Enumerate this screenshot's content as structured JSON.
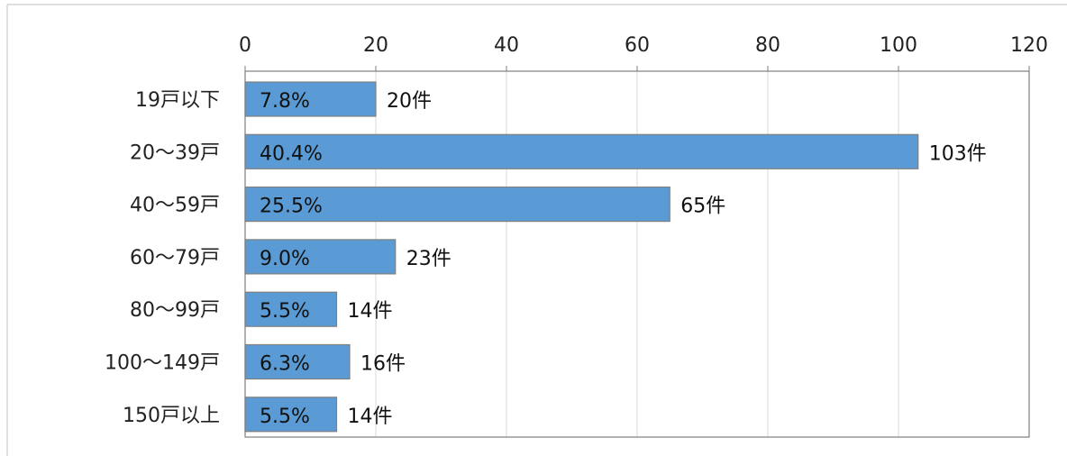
{
  "page_partial_text": "...(  )   ...",
  "chart_data": {
    "type": "bar",
    "orientation": "horizontal",
    "categories": [
      "19戸以下",
      "20～39戸",
      "40～59戸",
      "60～79戸",
      "80～99戸",
      "100～149戸",
      "150戸以上"
    ],
    "values": [
      20,
      103,
      65,
      23,
      14,
      16,
      14
    ],
    "percent_labels": [
      "7.8%",
      "40.4%",
      "25.5%",
      "9.0%",
      "5.5%",
      "6.3%",
      "5.5%"
    ],
    "count_labels": [
      "20件",
      "103件",
      "65件",
      "23件",
      "14件",
      "16件",
      "14件"
    ],
    "xticks": [
      "0",
      "20",
      "40",
      "60",
      "80",
      "100",
      "120"
    ],
    "xlim": [
      0,
      120
    ],
    "grid": "vertical",
    "legend": "none",
    "colors": {
      "bar": "#5b9bd5",
      "bar_edge": "#7f7f7f",
      "grid": "#d9d9d9",
      "axis": "#7f7f7f"
    }
  }
}
